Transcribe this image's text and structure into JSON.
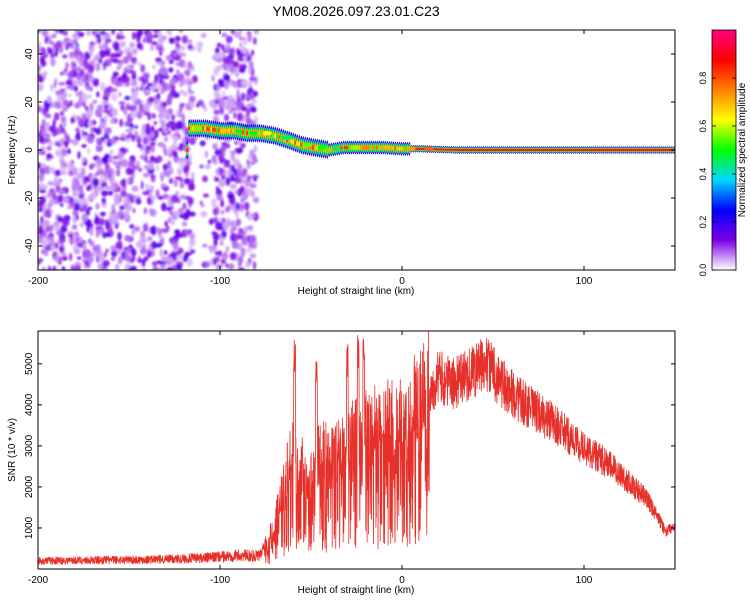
{
  "title": "YM08.2026.097.23.01.C23",
  "chart_data": [
    {
      "type": "heatmap",
      "title": "YM08.2026.097.23.01.C23",
      "xlabel": "Height of straight line (km)",
      "ylabel": "Frequency (Hz)",
      "xlim": [
        -200,
        150
      ],
      "ylim": [
        -50,
        50
      ],
      "xticks": [
        -200,
        -100,
        0,
        100
      ],
      "xtick_labels": [
        "-200",
        "-100",
        "0",
        "100"
      ],
      "yticks": [
        -40,
        -20,
        0,
        20,
        40
      ],
      "ytick_labels": [
        "-40",
        "-20",
        "0",
        "20",
        "40"
      ],
      "noise_region_x": [
        -200,
        -80
      ],
      "ridge": {
        "x": [
          -117,
          -108,
          -100,
          -92,
          -85,
          -78,
          -70,
          -62,
          -55,
          -48,
          -40,
          -32,
          -25,
          -18,
          -10,
          0,
          10,
          30,
          60,
          100,
          150
        ],
        "freq": [
          9,
          9,
          8,
          8,
          7,
          7,
          6,
          4,
          2,
          1,
          0,
          1,
          1,
          1,
          1,
          0.5,
          0.5,
          0,
          0,
          0,
          0
        ]
      },
      "colorbar": {
        "label": "Normalized spectral amplitude",
        "range": [
          0,
          1
        ],
        "ticks": [
          "0.0",
          "0.2",
          "0.4",
          "0.6",
          "0.8"
        ],
        "colors": [
          "#ffffff",
          "#7a00e6",
          "#0000ff",
          "#00d8ff",
          "#00ff00",
          "#ffff00",
          "#ff8000",
          "#ff0000",
          "#ff0080"
        ]
      }
    },
    {
      "type": "line",
      "xlabel": "Height of straight line (km)",
      "ylabel": "SNR (10 * v/v)",
      "xlim": [
        -200,
        150
      ],
      "ylim": [
        0,
        5800
      ],
      "xticks": [
        -200,
        -100,
        0,
        100
      ],
      "xtick_labels": [
        "-200",
        "-100",
        "0",
        "100"
      ],
      "yticks": [
        1000,
        2000,
        3000,
        4000,
        5000
      ],
      "ytick_labels": [
        "1000",
        "2000",
        "3000",
        "4000",
        "5000"
      ],
      "color": "#e8302a",
      "series": [
        {
          "name": "SNR",
          "x": [
            -200,
            -180,
            -160,
            -140,
            -120,
            -105,
            -90,
            -78,
            -72,
            -66,
            -60,
            -52,
            -45,
            -38,
            -30,
            -22,
            -15,
            -8,
            0,
            8,
            15,
            20,
            28,
            35,
            42,
            47,
            55,
            65,
            75,
            85,
            95,
            105,
            115,
            125,
            135,
            140,
            145,
            150
          ],
          "y": [
            200,
            210,
            220,
            230,
            250,
            280,
            330,
            320,
            900,
            1700,
            2700,
            2100,
            2600,
            2500,
            2900,
            3100,
            3200,
            3300,
            3400,
            3800,
            4300,
            4700,
            4500,
            4700,
            4900,
            5000,
            4500,
            4100,
            3800,
            3500,
            3100,
            2800,
            2500,
            2100,
            1700,
            1300,
            900,
            1100
          ],
          "peaks": [
            {
              "x": -59,
              "y": 5600
            },
            {
              "x": -47,
              "y": 5100
            },
            {
              "x": -30,
              "y": 5500
            },
            {
              "x": -24,
              "y": 5700
            },
            {
              "x": -21,
              "y": 5750
            }
          ]
        }
      ]
    }
  ]
}
